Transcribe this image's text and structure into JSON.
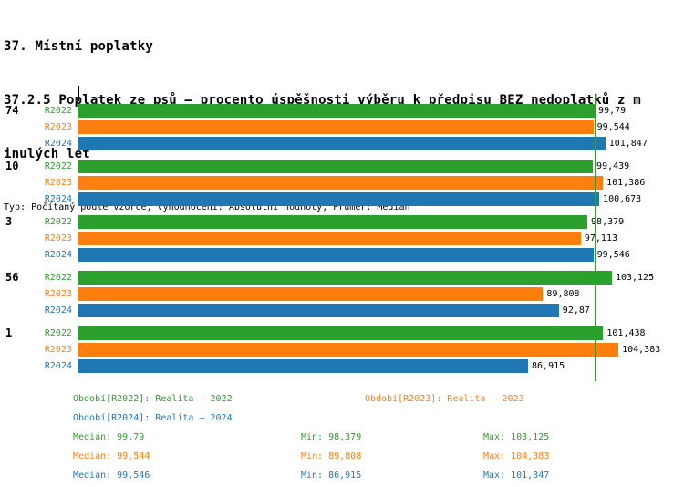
{
  "header": {
    "title_line1": "37. Místní poplatky",
    "title_line2": "37.2.5 Poplatek ze psů – procento úspěšnosti výběru k předpisu BEZ nedoplatků z m",
    "title_line3": "inulých let",
    "meta": "Typ: Počítaný podle vzorce, Vyhodnocení: Absolutní hodnoty, Průměr: Medián"
  },
  "colors": {
    "R2022": "#2ca02c",
    "R2023": "#ff7f0e",
    "R2024": "#1f77b4",
    "reference_line": "#2ca02c"
  },
  "chart_data": {
    "type": "bar",
    "orientation": "horizontal",
    "xlim": [
      0,
      116
    ],
    "reference_line_value": 99.79,
    "series_names": [
      "R2022",
      "R2023",
      "R2024"
    ],
    "groups": [
      {
        "label": "74",
        "bars": [
          {
            "series": "R2022",
            "value": 99.79,
            "label": "99,79"
          },
          {
            "series": "R2023",
            "value": 99.544,
            "label": "99,544"
          },
          {
            "series": "R2024",
            "value": 101.847,
            "label": "101,847"
          }
        ]
      },
      {
        "label": "10",
        "bars": [
          {
            "series": "R2022",
            "value": 99.439,
            "label": "99,439"
          },
          {
            "series": "R2023",
            "value": 101.386,
            "label": "101,386"
          },
          {
            "series": "R2024",
            "value": 100.673,
            "label": "100,673"
          }
        ]
      },
      {
        "label": "3",
        "bars": [
          {
            "series": "R2022",
            "value": 98.379,
            "label": "98,379"
          },
          {
            "series": "R2023",
            "value": 97.113,
            "label": "97,113"
          },
          {
            "series": "R2024",
            "value": 99.546,
            "label": "99,546"
          }
        ]
      },
      {
        "label": "56",
        "bars": [
          {
            "series": "R2022",
            "value": 103.125,
            "label": "103,125"
          },
          {
            "series": "R2023",
            "value": 89.808,
            "label": "89,808"
          },
          {
            "series": "R2024",
            "value": 92.87,
            "label": "92,87"
          }
        ]
      },
      {
        "label": "1",
        "bars": [
          {
            "series": "R2022",
            "value": 101.438,
            "label": "101,438"
          },
          {
            "series": "R2023",
            "value": 104.383,
            "label": "104,383"
          },
          {
            "series": "R2024",
            "value": 86.915,
            "label": "86,915"
          }
        ]
      }
    ]
  },
  "legend": {
    "r2022": "Období[R2022]: Realita – 2022",
    "r2023": "Období[R2023]: Realita – 2023",
    "r2024": "Období[R2024]: Realita – 2024"
  },
  "stats": [
    {
      "series": "R2022",
      "median": "Medián: 99,79",
      "min": "Min: 98,379",
      "max": "Max: 103,125"
    },
    {
      "series": "R2023",
      "median": "Medián: 99,544",
      "min": "Min: 89,808",
      "max": "Max: 104,383"
    },
    {
      "series": "R2024",
      "median": "Medián: 99,546",
      "min": "Min: 86,915",
      "max": "Max: 101,847"
    }
  ]
}
